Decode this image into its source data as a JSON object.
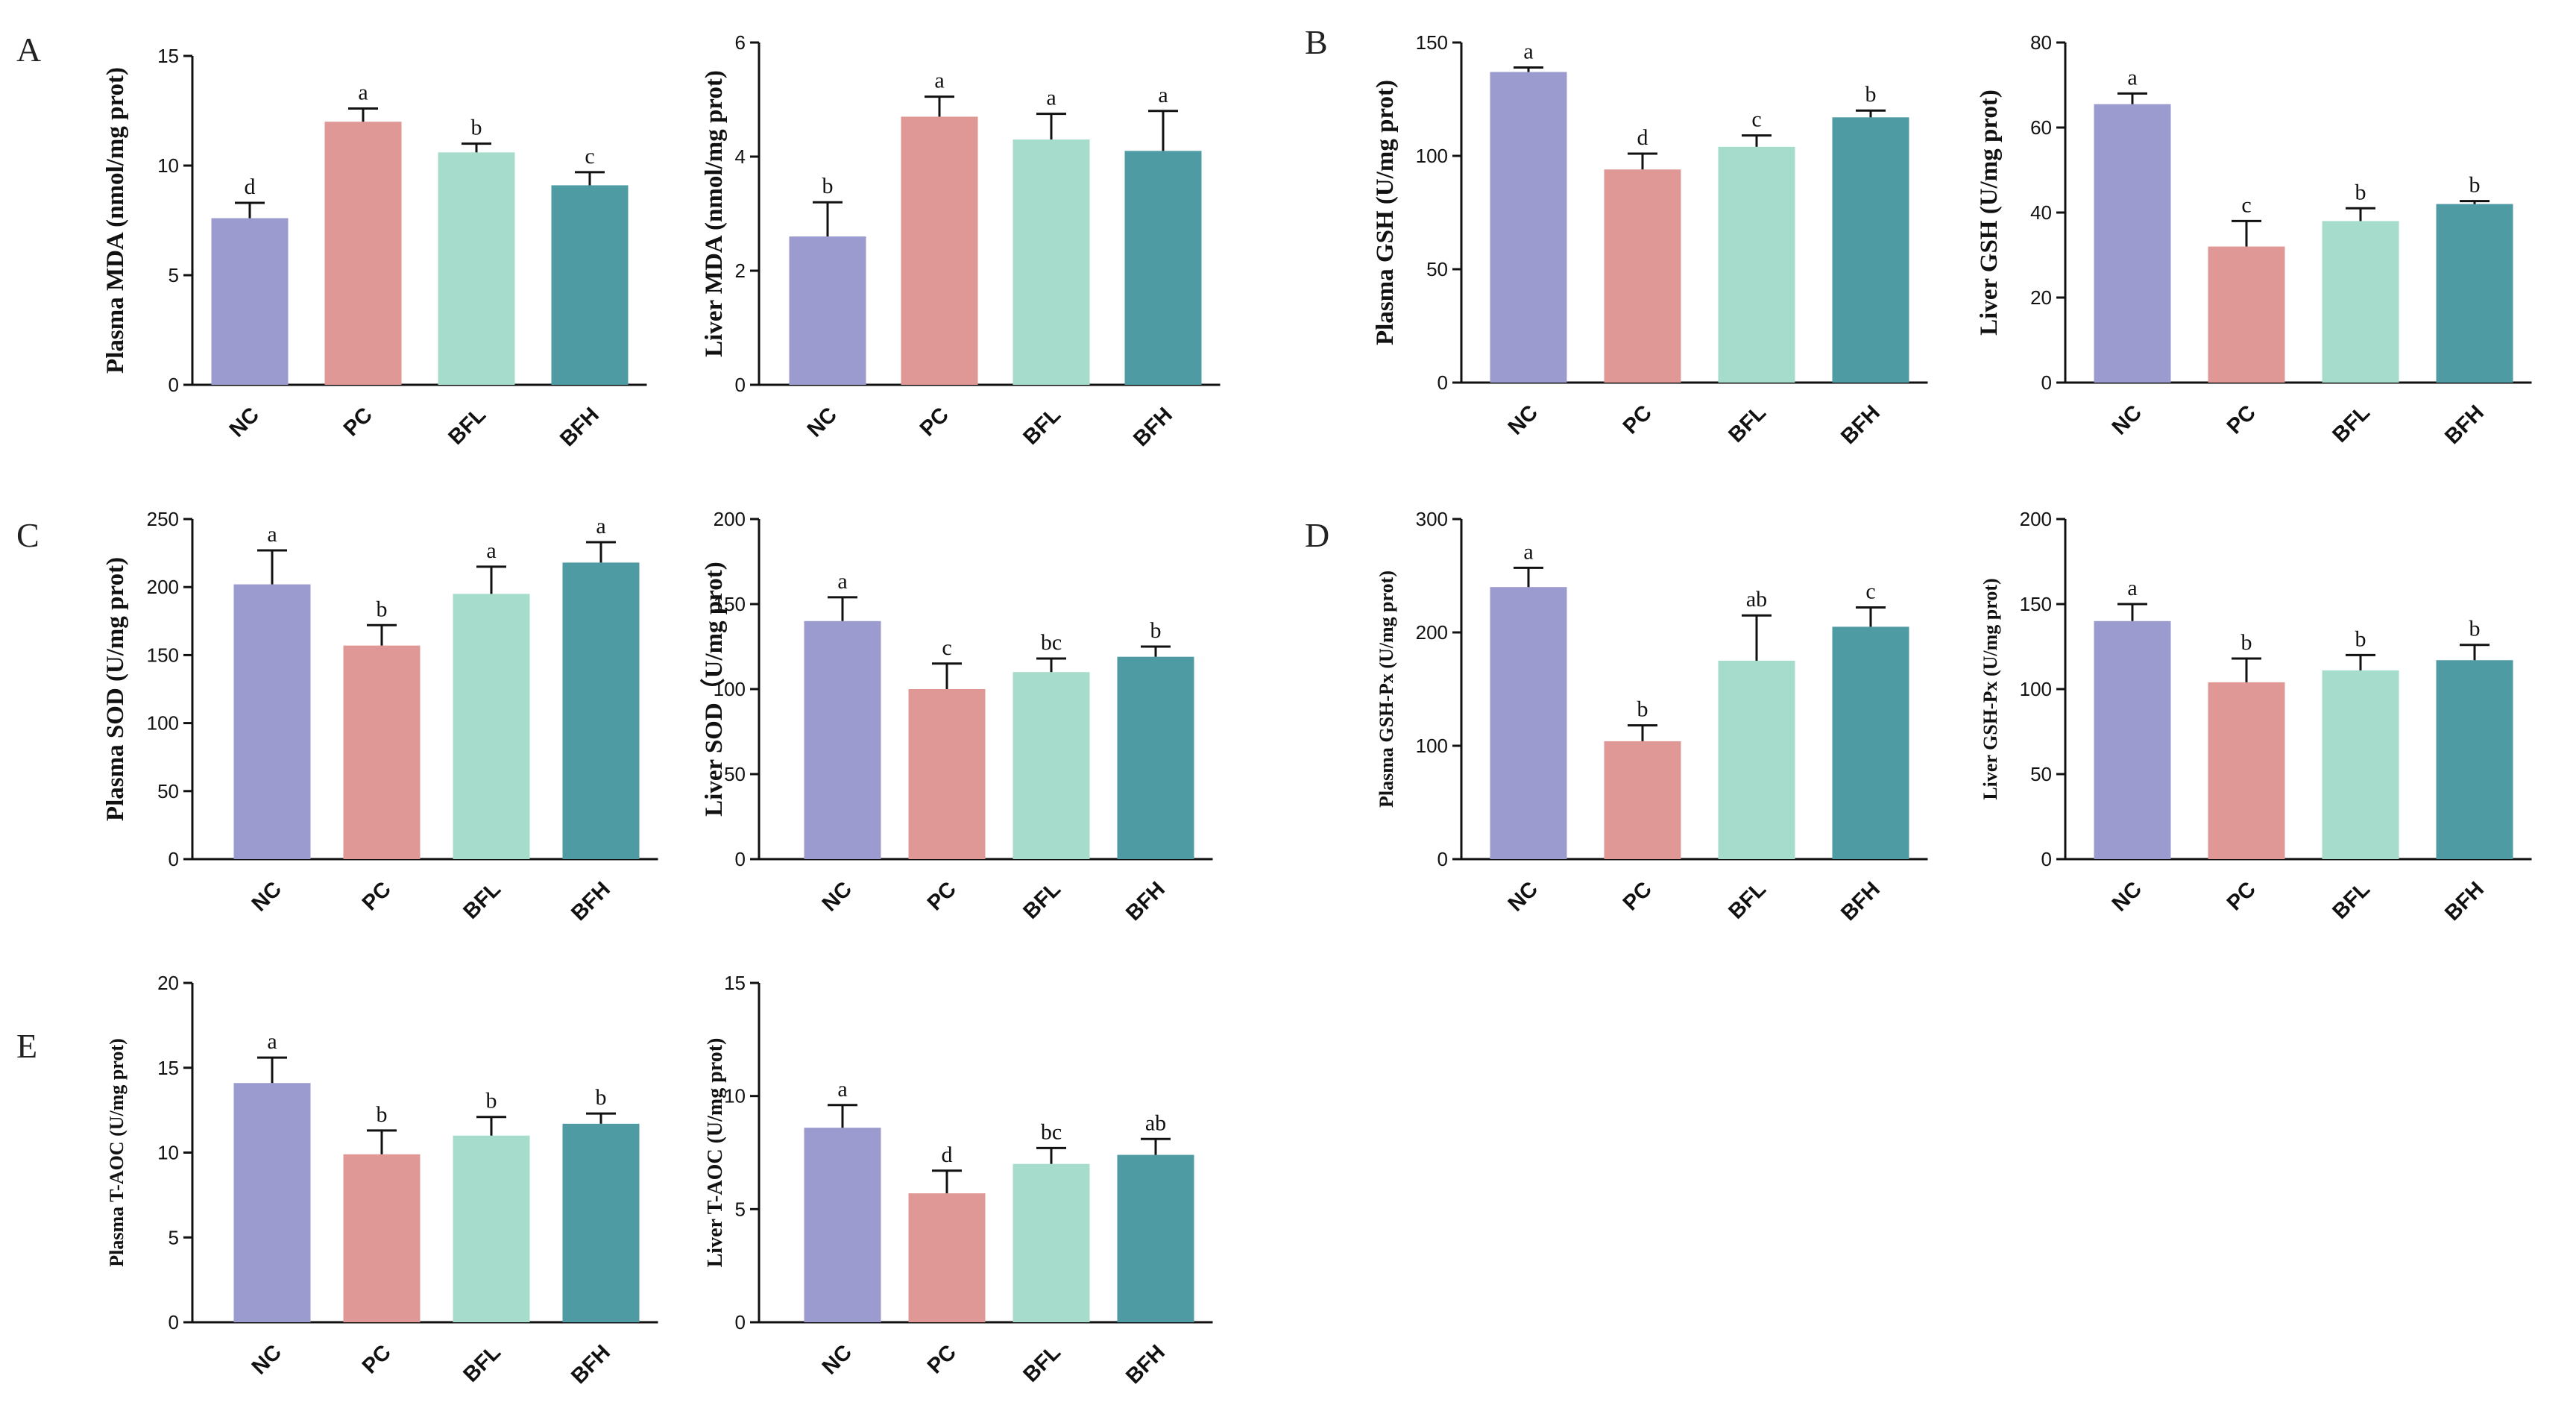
{
  "figure": {
    "colors": {
      "NC": "#9b9bcf",
      "PC": "#df9895",
      "BFL": "#a6dccb",
      "BFH": "#4f9ba3",
      "axis": "#111111",
      "error": "#111111"
    },
    "panel_letters": [
      "A",
      "B",
      "C",
      "D",
      "E"
    ]
  },
  "chart_data": [
    {
      "id": "plasma-mda",
      "type": "bar",
      "panel": "A",
      "ylabel": "Plasma MDA (nmol/mg prot)",
      "categories": [
        "NC",
        "PC",
        "BFL",
        "BFH"
      ],
      "values": [
        7.6,
        12.0,
        10.6,
        9.1
      ],
      "errors": [
        0.7,
        0.6,
        0.4,
        0.6
      ],
      "letters": [
        "d",
        "a",
        "b",
        "c"
      ],
      "ylim": [
        0,
        15
      ],
      "ticks": [
        0,
        5,
        10,
        15
      ]
    },
    {
      "id": "liver-mda",
      "type": "bar",
      "panel": "",
      "ylabel": "Liver MDA (nmol/mg prot)",
      "categories": [
        "NC",
        "PC",
        "BFL",
        "BFH"
      ],
      "values": [
        2.6,
        4.7,
        4.3,
        4.1
      ],
      "errors": [
        0.6,
        0.35,
        0.45,
        0.7
      ],
      "letters": [
        "b",
        "a",
        "a",
        "a"
      ],
      "ylim": [
        0,
        6
      ],
      "ticks": [
        0,
        2,
        4,
        6
      ]
    },
    {
      "id": "plasma-gsh",
      "type": "bar",
      "panel": "B",
      "ylabel": "Plasma GSH (U/mg prot)",
      "categories": [
        "NC",
        "PC",
        "BFL",
        "BFH"
      ],
      "values": [
        137,
        94,
        104,
        117
      ],
      "errors": [
        2,
        7,
        5,
        3
      ],
      "letters": [
        "a",
        "d",
        "c",
        "b"
      ],
      "ylim": [
        0,
        150
      ],
      "ticks": [
        0,
        50,
        100,
        150
      ]
    },
    {
      "id": "liver-gsh",
      "type": "bar",
      "panel": "",
      "ylabel": "Liver GSH (U/mg prot)",
      "categories": [
        "NC",
        "PC",
        "BFL",
        "BFH"
      ],
      "values": [
        65.5,
        32,
        38,
        42
      ],
      "errors": [
        2.5,
        6,
        3,
        0.7
      ],
      "letters": [
        "a",
        "c",
        "b",
        "b"
      ],
      "ylim": [
        0,
        80
      ],
      "ticks": [
        0,
        20,
        40,
        60,
        80
      ]
    },
    {
      "id": "plasma-sod",
      "type": "bar",
      "panel": "C",
      "ylabel": "Plasma SOD (U/mg prot)",
      "categories": [
        "NC",
        "PC",
        "BFL",
        "BFH"
      ],
      "values": [
        202,
        157,
        195,
        218
      ],
      "errors": [
        25,
        15,
        20,
        15
      ],
      "letters": [
        "a",
        "b",
        "a",
        "a"
      ],
      "ylim": [
        0,
        250
      ],
      "ticks": [
        0,
        50,
        100,
        150,
        200,
        250
      ]
    },
    {
      "id": "liver-sod",
      "type": "bar",
      "panel": "",
      "ylabel": "Liver SOD（U/mg prot)",
      "categories": [
        "NC",
        "PC",
        "BFL",
        "BFH"
      ],
      "values": [
        140,
        100,
        110,
        119
      ],
      "errors": [
        14,
        15,
        8,
        6
      ],
      "letters": [
        "a",
        "c",
        "bc",
        "b"
      ],
      "ylim": [
        0,
        200
      ],
      "ticks": [
        0,
        50,
        100,
        150,
        200
      ]
    },
    {
      "id": "plasma-gshpx",
      "type": "bar",
      "panel": "D",
      "ylabel": "Plasma GSH-Px (U/mg prot)",
      "categories": [
        "NC",
        "PC",
        "BFL",
        "BFH"
      ],
      "values": [
        240,
        104,
        175,
        205
      ],
      "errors": [
        17,
        14,
        40,
        17
      ],
      "letters": [
        "a",
        "b",
        "ab",
        "c"
      ],
      "ylim": [
        0,
        300
      ],
      "ticks": [
        0,
        100,
        200,
        300
      ]
    },
    {
      "id": "liver-gshpx",
      "type": "bar",
      "panel": "",
      "ylabel": "Liver GSH-Px (U/mg prot)",
      "categories": [
        "NC",
        "PC",
        "BFL",
        "BFH"
      ],
      "values": [
        140,
        104,
        111,
        117
      ],
      "errors": [
        10,
        14,
        9,
        9
      ],
      "letters": [
        "a",
        "b",
        "b",
        "b"
      ],
      "ylim": [
        0,
        200
      ],
      "ticks": [
        0,
        50,
        100,
        150,
        200
      ]
    },
    {
      "id": "plasma-taoc",
      "type": "bar",
      "panel": "E",
      "ylabel": "Plasma T-AOC (U/mg prot)",
      "categories": [
        "NC",
        "PC",
        "BFL",
        "BFH"
      ],
      "values": [
        14.1,
        9.9,
        11.0,
        11.7
      ],
      "errors": [
        1.5,
        1.4,
        1.1,
        0.6
      ],
      "letters": [
        "a",
        "b",
        "b",
        "b"
      ],
      "ylim": [
        0,
        20
      ],
      "ticks": [
        0,
        5,
        10,
        15,
        20
      ]
    },
    {
      "id": "liver-taoc",
      "type": "bar",
      "panel": "",
      "ylabel": "Liver T-AOC (U/mg prot)",
      "categories": [
        "NC",
        "PC",
        "BFL",
        "BFH"
      ],
      "values": [
        8.6,
        5.7,
        7.0,
        7.4
      ],
      "errors": [
        1.0,
        1.0,
        0.7,
        0.7
      ],
      "letters": [
        "a",
        "d",
        "bc",
        "ab"
      ],
      "ylim": [
        0,
        15
      ],
      "ticks": [
        0,
        5,
        10,
        15
      ]
    }
  ]
}
